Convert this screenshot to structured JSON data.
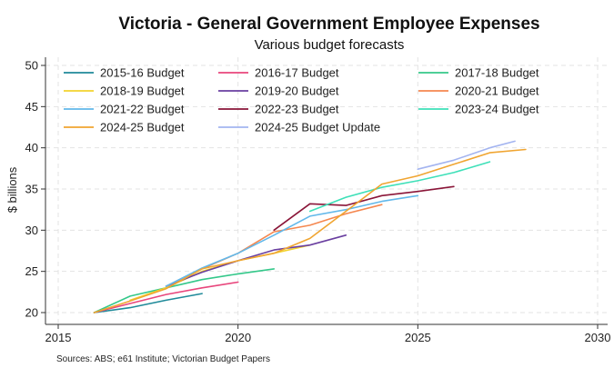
{
  "chart_data": {
    "type": "line",
    "title": "Victoria - General Government Employee Expenses",
    "subtitle": "Various budget forecasts",
    "xlabel": "",
    "ylabel": "$ billions",
    "xlim": [
      2015,
      2030
    ],
    "ylim": [
      19,
      51
    ],
    "xticks": [
      2015,
      2020,
      2025,
      2030
    ],
    "yticks": [
      20,
      25,
      30,
      35,
      40,
      45,
      50
    ],
    "grid": true,
    "legend_position": "top-left",
    "source": "Sources: ABS; e61 Institute; Victorian Budget Papers",
    "series": [
      {
        "name": "2015-16 Budget",
        "color": "#1f8a99",
        "x": [
          2016,
          2017,
          2018,
          2019
        ],
        "y": [
          20.0,
          20.6,
          21.5,
          22.3
        ]
      },
      {
        "name": "2016-17 Budget",
        "color": "#e8467c",
        "x": [
          2016,
          2017,
          2018,
          2019,
          2020
        ],
        "y": [
          20.0,
          21.1,
          22.2,
          23.0,
          23.7
        ]
      },
      {
        "name": "2017-18 Budget",
        "color": "#34c88a",
        "x": [
          2016,
          2017,
          2018,
          2019,
          2020,
          2021
        ],
        "y": [
          20.0,
          22.0,
          23.0,
          24.0,
          24.7,
          25.3
        ]
      },
      {
        "name": "2018-19 Budget",
        "color": "#f2d32e",
        "x": [
          2017,
          2018,
          2019,
          2020,
          2021,
          2022
        ],
        "y": [
          21.5,
          23.0,
          25.0,
          26.3,
          27.2,
          28.2
        ]
      },
      {
        "name": "2019-20 Budget",
        "color": "#6a3fa0",
        "x": [
          2018,
          2019,
          2020,
          2021,
          2022,
          2023
        ],
        "y": [
          23.2,
          24.9,
          26.3,
          27.6,
          28.2,
          29.4
        ]
      },
      {
        "name": "2020-21 Budget",
        "color": "#f5874f",
        "x": [
          2018,
          2019,
          2020,
          2021,
          2022,
          2023,
          2024
        ],
        "y": [
          23.2,
          25.3,
          27.2,
          29.8,
          30.6,
          32.0,
          33.1
        ]
      },
      {
        "name": "2021-22 Budget",
        "color": "#62b8ea",
        "x": [
          2018,
          2019,
          2020,
          2021,
          2022,
          2023,
          2024,
          2025
        ],
        "y": [
          23.2,
          25.4,
          27.2,
          29.4,
          31.7,
          32.5,
          33.5,
          34.2
        ]
      },
      {
        "name": "2022-23 Budget",
        "color": "#8a1538",
        "x": [
          2021,
          2022,
          2023,
          2024,
          2025,
          2026
        ],
        "y": [
          30.0,
          33.2,
          33.0,
          34.2,
          34.7,
          35.3
        ]
      },
      {
        "name": "2023-24 Budget",
        "color": "#3ee0b8",
        "x": [
          2022,
          2023,
          2024,
          2025,
          2026,
          2027
        ],
        "y": [
          32.3,
          34.0,
          35.2,
          36.0,
          37.0,
          38.3
        ]
      },
      {
        "name": "2024-25 Budget",
        "color": "#f0a531",
        "x": [
          2016,
          2017,
          2018,
          2019,
          2020,
          2021,
          2022,
          2023,
          2024,
          2025,
          2026,
          2027,
          2028
        ],
        "y": [
          20.0,
          21.4,
          22.9,
          25.3,
          26.3,
          27.2,
          29.0,
          32.3,
          35.6,
          36.6,
          38.0,
          39.4,
          39.8
        ]
      },
      {
        "name": "2024-25 Budget Update",
        "color": "#a3b4f0",
        "x": [
          2025,
          2026,
          2027,
          2027.7
        ],
        "y": [
          37.4,
          38.5,
          40.0,
          40.8
        ]
      }
    ]
  }
}
